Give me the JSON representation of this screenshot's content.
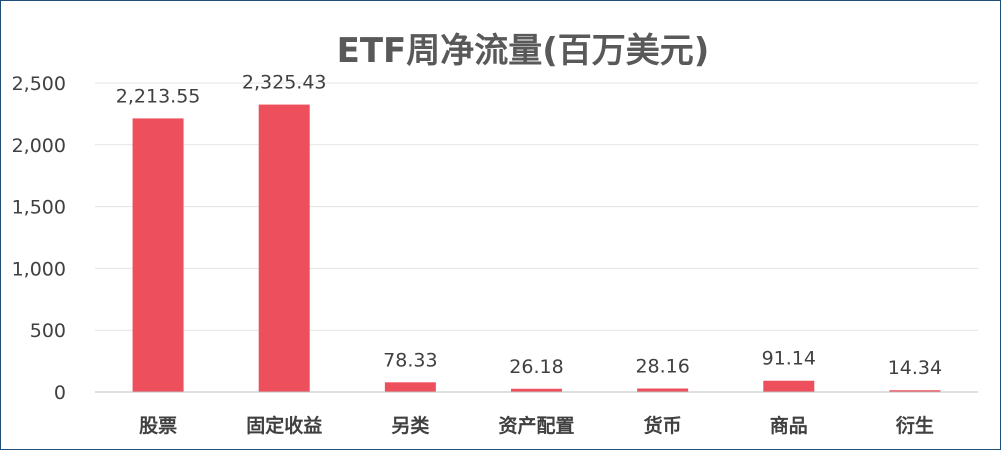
{
  "chart_data": {
    "type": "bar",
    "title": "ETF周净流量(百万美元)",
    "xlabel": "",
    "ylabel": "",
    "categories": [
      "股票",
      "固定收益",
      "另类",
      "资产配置",
      "货币",
      "商品",
      "衍生"
    ],
    "values": [
      2213.55,
      2325.43,
      78.33,
      26.18,
      28.16,
      91.14,
      14.34
    ],
    "data_labels": [
      "2,213.55",
      "2,325.43",
      "78.33",
      "26.18",
      "28.16",
      "91.14",
      "14.34"
    ],
    "ylim": [
      0,
      2500
    ],
    "yticks": [
      0,
      500,
      1000,
      1500,
      2000,
      2500
    ],
    "ytick_labels": [
      "0",
      "500",
      "1,000",
      "1,500",
      "2,000",
      "2,500"
    ],
    "grid": true,
    "legend": "none",
    "colors": {
      "bar": "#ee4f5c",
      "grid": "#e3e3e3",
      "axis": "#bfbfbf",
      "title": "#595959",
      "text": "#404040",
      "border": "#1f4e79"
    }
  }
}
